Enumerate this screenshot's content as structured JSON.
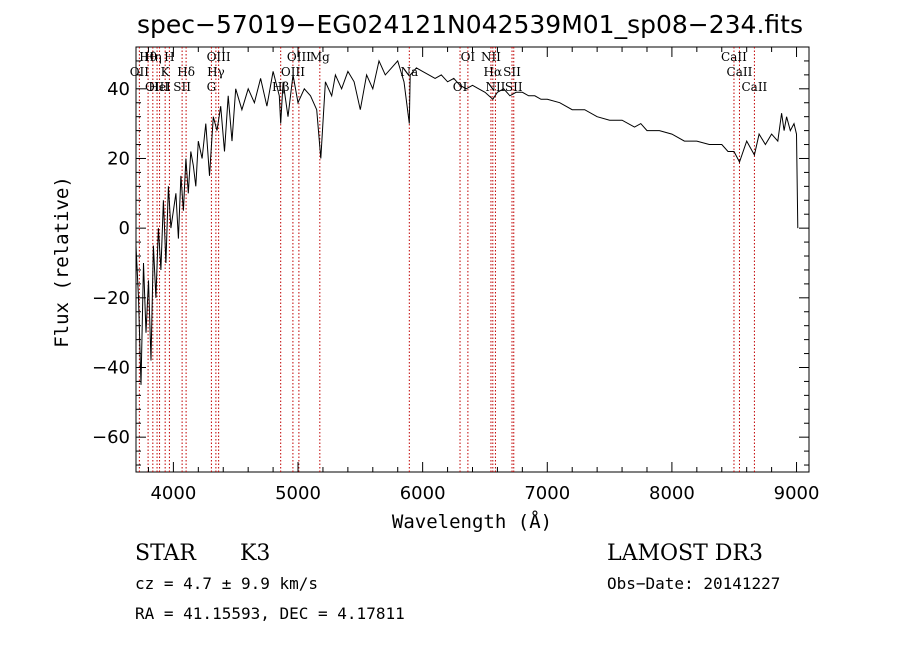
{
  "chart_data": {
    "type": "line",
    "title": "spec−57019−EG024121N042539M01_sp08−234.fits",
    "xlabel": "Wavelength (Å)",
    "ylabel": "Flux (relative)",
    "xlim": [
      3700,
      9100
    ],
    "ylim": [
      -70,
      52
    ],
    "xticks": [
      4000,
      5000,
      6000,
      7000,
      8000,
      9000
    ],
    "xtick_labels": [
      "4000",
      "5000",
      "6000",
      "7000",
      "8000",
      "9000"
    ],
    "yticks": [
      -60,
      -40,
      -20,
      0,
      20,
      40
    ],
    "ytick_labels": [
      "−60",
      "−40",
      "−20",
      "0",
      "20",
      "40"
    ],
    "series": [
      {
        "name": "spectrum",
        "color": "#000000",
        "x": [
          3700,
          3720,
          3740,
          3760,
          3780,
          3800,
          3820,
          3840,
          3860,
          3880,
          3900,
          3920,
          3940,
          3960,
          3980,
          4000,
          4020,
          4040,
          4060,
          4080,
          4100,
          4120,
          4140,
          4160,
          4180,
          4200,
          4230,
          4260,
          4290,
          4320,
          4350,
          4380,
          4410,
          4440,
          4470,
          4500,
          4550,
          4600,
          4650,
          4700,
          4750,
          4800,
          4850,
          4861,
          4880,
          4920,
          4960,
          5000,
          5050,
          5100,
          5150,
          5183,
          5220,
          5270,
          5300,
          5350,
          5400,
          5450,
          5500,
          5550,
          5600,
          5650,
          5700,
          5750,
          5800,
          5850,
          5893,
          5900,
          5950,
          6000,
          6050,
          6100,
          6150,
          6200,
          6250,
          6300,
          6350,
          6400,
          6450,
          6500,
          6563,
          6600,
          6650,
          6700,
          6750,
          6800,
          6850,
          6900,
          6950,
          7000,
          7100,
          7200,
          7300,
          7400,
          7500,
          7600,
          7700,
          7750,
          7800,
          7900,
          8000,
          8100,
          8200,
          8300,
          8400,
          8450,
          8498,
          8542,
          8600,
          8662,
          8700,
          8750,
          8800,
          8850,
          8880,
          8900,
          8920,
          8950,
          8980,
          9000,
          9010
        ],
        "y": [
          -5,
          -20,
          -45,
          -10,
          -30,
          -15,
          -38,
          -5,
          -20,
          0,
          -12,
          8,
          -10,
          12,
          0,
          5,
          10,
          -3,
          15,
          5,
          20,
          10,
          22,
          18,
          12,
          25,
          20,
          30,
          15,
          32,
          28,
          35,
          22,
          38,
          25,
          40,
          34,
          40,
          36,
          43,
          35,
          45,
          38,
          30,
          42,
          32,
          44,
          36,
          40,
          38,
          34,
          20,
          42,
          38,
          44,
          40,
          45,
          42,
          34,
          44,
          40,
          48,
          44,
          46,
          48,
          42,
          30,
          44,
          46,
          45,
          44,
          43,
          44,
          42,
          43,
          41,
          40,
          41,
          40,
          39,
          37,
          39,
          40,
          38,
          39,
          39,
          38,
          38,
          37,
          37,
          36,
          34,
          34,
          32,
          31,
          31,
          29,
          30,
          28,
          28,
          27,
          25,
          25,
          24,
          24,
          22,
          22,
          19,
          25,
          21,
          27,
          24,
          27,
          25,
          33,
          28,
          32,
          28,
          30,
          27,
          0
        ]
      }
    ],
    "lines": [
      {
        "label": "Hθ",
        "x": 3797
      },
      {
        "label": "OII",
        "x": 3727
      },
      {
        "label": "OIII",
        "x": 3869
      },
      {
        "label": "Hη",
        "x": 3835
      },
      {
        "label": "K",
        "x": 3934
      },
      {
        "label": "HeI",
        "x": 3889
      },
      {
        "label": "H",
        "x": 3968
      },
      {
        "label": "Hδ",
        "x": 4102
      },
      {
        "label": "SII",
        "x": 4070
      },
      {
        "label": "OIII",
        "x": 4363
      },
      {
        "label": "Hγ",
        "x": 4341
      },
      {
        "label": "G",
        "x": 4305
      },
      {
        "label": "OIII",
        "x": 5007
      },
      {
        "label": "OIII",
        "x": 4959
      },
      {
        "label": "Hβ",
        "x": 4861
      },
      {
        "label": "Mg",
        "x": 5175
      },
      {
        "label": "Na",
        "x": 5893
      },
      {
        "label": "OI",
        "x": 6300
      },
      {
        "label": "OI",
        "x": 6363
      },
      {
        "label": "Hα",
        "x": 6563
      },
      {
        "label": "NII",
        "x": 6584
      },
      {
        "label": "NII",
        "x": 6548
      },
      {
        "label": "SII",
        "x": 6717
      },
      {
        "label": "SII",
        "x": 6731
      },
      {
        "label": "CaII",
        "x": 8498
      },
      {
        "label": "CaII",
        "x": 8542
      },
      {
        "label": "CaII",
        "x": 8662
      }
    ]
  },
  "info": {
    "object_class": "STAR",
    "subclass": "K3",
    "survey": "LAMOST DR3",
    "cz": "cz = 4.7 ± 9.9 km/s",
    "obs_date": "Obs−Date: 20141227",
    "coords": "RA =  41.15593, DEC =   4.17811"
  }
}
